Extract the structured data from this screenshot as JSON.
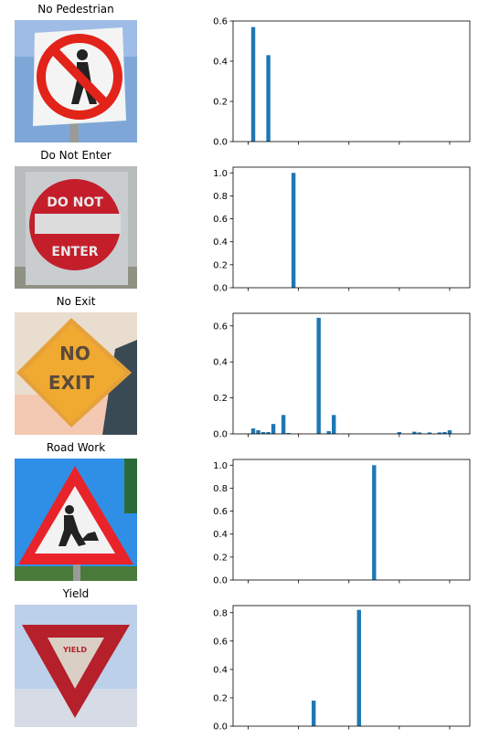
{
  "panels": [
    {
      "title": "No Pedestrian",
      "icon": "no-pedestrian-sign"
    },
    {
      "title": "Do Not Enter",
      "icon": "do-not-enter-sign",
      "sign_text_top": "DO NOT",
      "sign_text_bottom": "ENTER"
    },
    {
      "title": "No Exit",
      "icon": "no-exit-sign",
      "sign_text_top": "NO",
      "sign_text_bottom": "EXIT"
    },
    {
      "title": "Road Work",
      "icon": "road-work-sign"
    },
    {
      "title": "Yield",
      "icon": "yield-sign",
      "sign_text": "YIELD"
    }
  ],
  "chart_data": [
    {
      "type": "bar",
      "xlim": [
        -3,
        44
      ],
      "ylim": [
        0,
        0.6
      ],
      "xticks": [
        0,
        10,
        20,
        30,
        40
      ],
      "yticks": [
        0.0,
        0.2,
        0.4,
        0.6
      ],
      "ytick_labels": [
        "0.0",
        "0.2",
        "0.4",
        "0.6"
      ],
      "x": [
        1,
        4
      ],
      "values": [
        0.57,
        0.43
      ],
      "color": "#1f77b4"
    },
    {
      "type": "bar",
      "xlim": [
        -3,
        44
      ],
      "ylim": [
        0,
        1.05
      ],
      "xticks": [
        0,
        10,
        20,
        30,
        40
      ],
      "yticks": [
        0.0,
        0.2,
        0.4,
        0.6,
        0.8,
        1.0
      ],
      "ytick_labels": [
        "0.0",
        "0.2",
        "0.4",
        "0.6",
        "0.8",
        "1.0"
      ],
      "x": [
        9
      ],
      "values": [
        1.0
      ],
      "color": "#1f77b4"
    },
    {
      "type": "bar",
      "xlim": [
        -3,
        44
      ],
      "ylim": [
        0,
        0.67
      ],
      "xticks": [
        0,
        10,
        20,
        30,
        40
      ],
      "yticks": [
        0.0,
        0.2,
        0.4,
        0.6
      ],
      "ytick_labels": [
        "0.0",
        "0.2",
        "0.4",
        "0.6"
      ],
      "x": [
        1,
        2,
        3,
        4,
        5,
        7,
        8,
        14,
        16,
        17,
        30,
        33,
        34,
        36,
        38,
        39,
        40
      ],
      "values": [
        0.03,
        0.02,
        0.01,
        0.01,
        0.055,
        0.105,
        0.005,
        0.645,
        0.015,
        0.105,
        0.01,
        0.012,
        0.008,
        0.008,
        0.008,
        0.01,
        0.02
      ],
      "color": "#1f77b4"
    },
    {
      "type": "bar",
      "xlim": [
        -3,
        44
      ],
      "ylim": [
        0,
        1.05
      ],
      "xticks": [
        0,
        10,
        20,
        30,
        40
      ],
      "yticks": [
        0.0,
        0.2,
        0.4,
        0.6,
        0.8,
        1.0
      ],
      "ytick_labels": [
        "0.0",
        "0.2",
        "0.4",
        "0.6",
        "0.8",
        "1.0"
      ],
      "x": [
        25
      ],
      "values": [
        1.0
      ],
      "color": "#1f77b4"
    },
    {
      "type": "bar",
      "xlim": [
        -3,
        44
      ],
      "ylim": [
        0,
        0.85
      ],
      "xticks": [
        0,
        10,
        20,
        30,
        40
      ],
      "yticks": [
        0.0,
        0.2,
        0.4,
        0.6,
        0.8
      ],
      "ytick_labels": [
        "0.0",
        "0.2",
        "0.4",
        "0.6",
        "0.8"
      ],
      "x": [
        13,
        22
      ],
      "values": [
        0.18,
        0.82
      ],
      "color": "#1f77b4"
    }
  ]
}
